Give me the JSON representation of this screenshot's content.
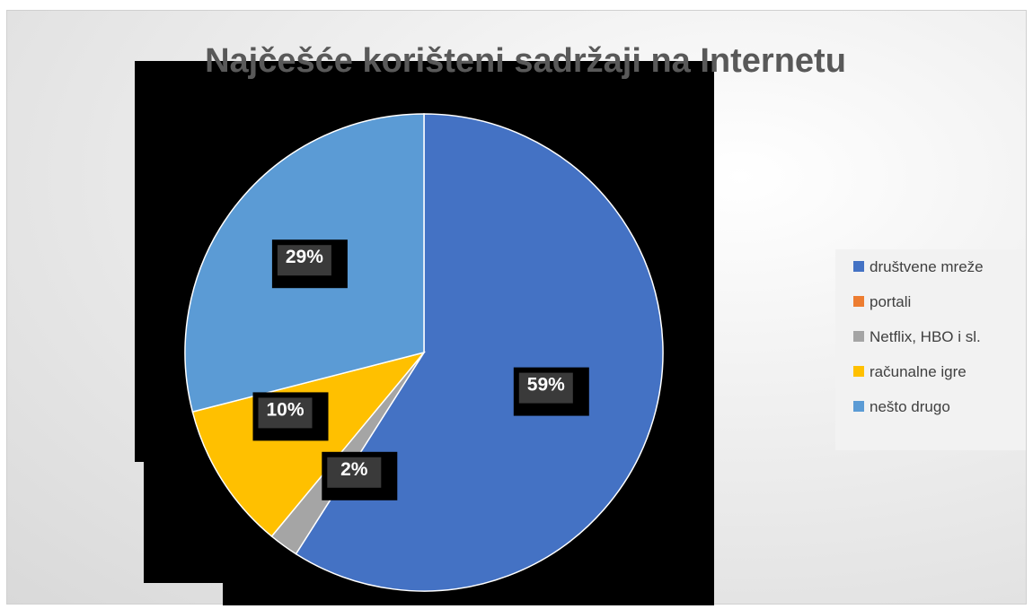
{
  "chart_data": {
    "type": "pie",
    "title": "Najčešće korišteni sadržaji na Internetu",
    "categories": [
      "društvene mreže",
      "portali",
      "Netflix, HBO i sl.",
      "računalne igre",
      "nešto drugo"
    ],
    "values": [
      59,
      0,
      2,
      10,
      29
    ],
    "labels": [
      "59%",
      "",
      "2%",
      "10%",
      "29%"
    ],
    "colors": [
      "#4472C4",
      "#ED7D31",
      "#A5A5A5",
      "#FFC000",
      "#5B9BD5"
    ],
    "legend_position": "right"
  }
}
